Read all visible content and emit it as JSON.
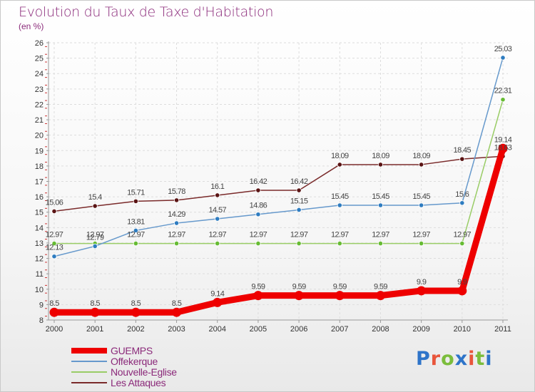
{
  "header": {
    "title": "Evolution du Taux de Taxe d'Habitation",
    "unit": "(en %)"
  },
  "brand": {
    "logo_text": "Proxiti",
    "letter_colors": [
      "#2e74c9",
      "#e8553b",
      "#7bbd3c",
      "#2e74c9",
      "#e8553b",
      "#7bbd3c",
      "#2e74c9"
    ]
  },
  "chart_data": {
    "type": "line",
    "x": [
      "2000",
      "2001",
      "2002",
      "2003",
      "2004",
      "2005",
      "2006",
      "2007",
      "2008",
      "2009",
      "2010",
      "2011"
    ],
    "ylim": [
      8,
      26
    ],
    "yticks": [
      8,
      9,
      10,
      11,
      12,
      13,
      14,
      15,
      16,
      17,
      18,
      19,
      20,
      21,
      22,
      23,
      24,
      25,
      26
    ],
    "grid": true,
    "legend_position": "bottom-left",
    "series": [
      {
        "name": "GUEMPS",
        "color": "#ee0000",
        "marker_color": "#ee0000",
        "values": [
          8.5,
          8.5,
          8.5,
          8.5,
          9.14,
          9.59,
          9.59,
          9.59,
          9.59,
          9.9,
          9.9,
          19.14
        ],
        "labels": [
          "8.5",
          "8.5",
          "8.5",
          "8.5",
          "9.14",
          "9.59",
          "9.59",
          "9.59",
          "9.59",
          "9.9",
          "9.9",
          "19.14"
        ]
      },
      {
        "name": "Offekerque",
        "color": "#6699cc",
        "marker_color": "#2e7cc0",
        "values": [
          12.13,
          12.79,
          13.81,
          14.29,
          14.57,
          14.86,
          15.15,
          15.45,
          15.45,
          15.45,
          15.6,
          25.03
        ],
        "labels": [
          "12.13",
          "12.79",
          "13.81",
          "14.29",
          "14.57",
          "14.86",
          "15.15",
          "15.45",
          "15.45",
          "15.45",
          "15.6",
          "25.03"
        ]
      },
      {
        "name": "Nouvelle-Eglise",
        "color": "#99cc66",
        "marker_color": "#66bb33",
        "values": [
          12.97,
          12.97,
          12.97,
          12.97,
          12.97,
          12.97,
          12.97,
          12.97,
          12.97,
          12.97,
          12.97,
          22.31
        ],
        "labels": [
          "12.97",
          "12.97",
          "12.97",
          "12.97",
          "12.97",
          "12.97",
          "12.97",
          "12.97",
          "12.97",
          "12.97",
          "12.97",
          "22.31"
        ]
      },
      {
        "name": "Les Attaques",
        "color": "#7a2a2a",
        "marker_color": "#5a1414",
        "values": [
          15.06,
          15.4,
          15.71,
          15.78,
          16.1,
          16.42,
          16.42,
          18.09,
          18.09,
          18.09,
          18.45,
          18.63
        ],
        "labels": [
          "15.06",
          "15.4",
          "15.71",
          "15.78",
          "16.1",
          "16.42",
          "16.42",
          "18.09",
          "18.09",
          "18.09",
          "18.45",
          "18.63"
        ]
      }
    ]
  }
}
